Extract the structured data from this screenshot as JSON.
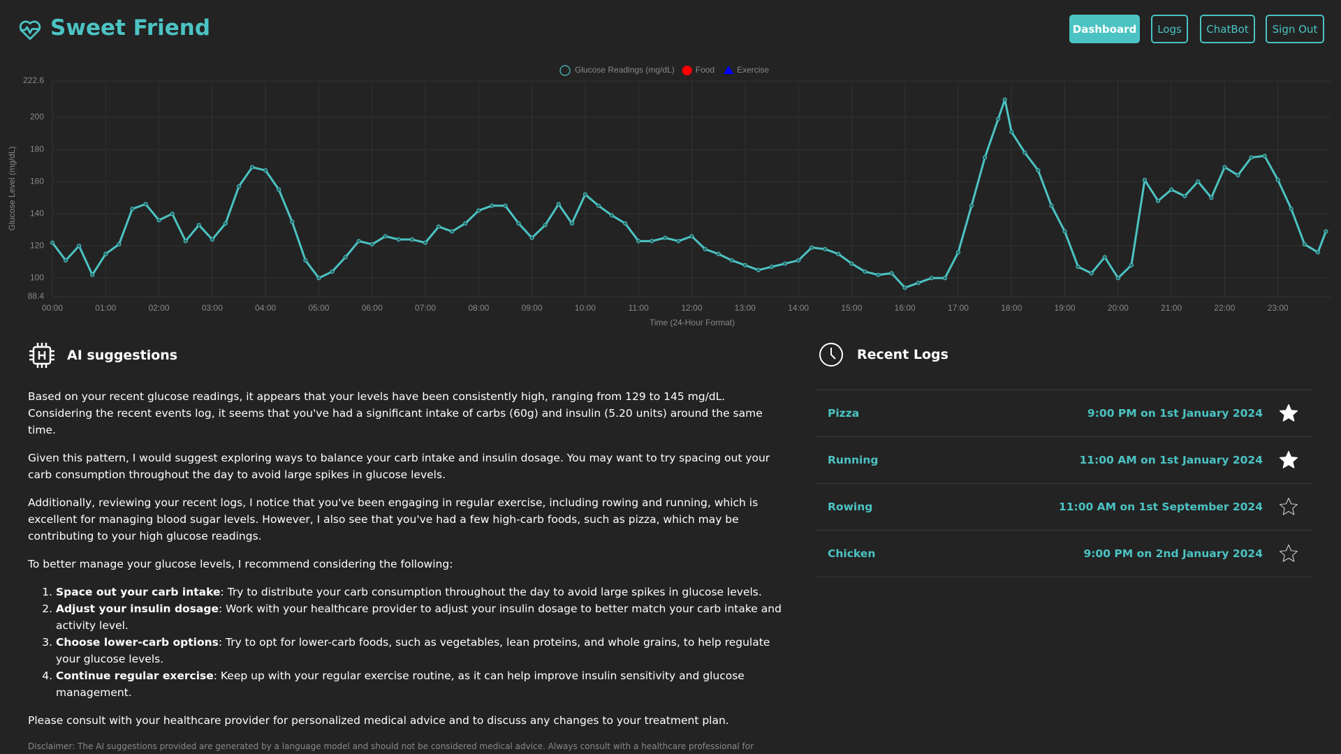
{
  "header": {
    "title": "Sweet Friend"
  },
  "nav": {
    "items": [
      "Dashboard",
      "Logs",
      "ChatBot",
      "Sign Out"
    ],
    "active": 0
  },
  "chart_data": {
    "type": "line",
    "x_label": "Time (24-Hour Format)",
    "y_label": "Glucose Level (mg/dL)",
    "x": [
      0,
      0.25,
      0.5,
      0.75,
      1,
      1.25,
      1.5,
      1.75,
      2,
      2.25,
      2.5,
      2.75,
      3,
      3.25,
      3.5,
      3.75,
      4,
      4.25,
      4.5,
      4.75,
      5,
      5.25,
      5.5,
      5.75,
      6,
      6.25,
      6.5,
      6.75,
      7,
      7.25,
      7.5,
      7.75,
      8,
      8.25,
      8.5,
      8.75,
      9,
      9.25,
      9.5,
      9.75,
      10,
      10.25,
      10.5,
      10.75,
      11,
      11.25,
      11.5,
      11.75,
      12,
      12.25,
      12.5,
      12.75,
      13,
      13.25,
      13.5,
      13.75,
      14,
      14.25,
      14.5,
      14.75,
      15,
      15.25,
      15.5,
      15.75,
      16,
      16.25,
      16.5,
      16.75,
      17,
      17.25,
      17.5,
      17.75,
      17.875,
      18,
      18.25,
      18.5,
      18.75,
      19,
      19.25,
      19.5,
      19.75,
      20,
      20.25,
      20.5,
      20.75,
      21,
      21.25,
      21.5,
      21.75,
      22,
      22.25,
      22.5,
      22.75,
      23,
      23.25,
      23.5,
      23.75,
      23.9
    ],
    "series": [
      {
        "name": "Glucose Readings (mg/dL)",
        "color": "#4cc3c3",
        "values": [
          122,
          111,
          120,
          102,
          115,
          121,
          143,
          146,
          136,
          140,
          123,
          133,
          124,
          134,
          157,
          169,
          167,
          155,
          135,
          111,
          100,
          104,
          113,
          123,
          121,
          126,
          124,
          124,
          122,
          132,
          129,
          134,
          142,
          145,
          145,
          134,
          125,
          133,
          146,
          134,
          152,
          145,
          139,
          134,
          123,
          123,
          125,
          123,
          126,
          118,
          115,
          111,
          108,
          105,
          107,
          109,
          111,
          119,
          118,
          115,
          109,
          104,
          102,
          103,
          94,
          97,
          100,
          100,
          116,
          145,
          175,
          199,
          211,
          191,
          178,
          167,
          145,
          129,
          107,
          103,
          113,
          100,
          108,
          161,
          148,
          155,
          151,
          160,
          150,
          169,
          164,
          175,
          176,
          161,
          143,
          121,
          116,
          129
        ]
      }
    ],
    "other_legend": [
      {
        "name": "Food",
        "color": "#ff0000",
        "marker": "circle"
      },
      {
        "name": "Exercise",
        "color": "#0000ff",
        "marker": "triangle"
      }
    ],
    "xlim": [
      0,
      24
    ],
    "ylim": [
      88.4,
      222.6
    ],
    "yticks": [
      88.4,
      100,
      120,
      140,
      160,
      180,
      200,
      222.6
    ],
    "xticks": [
      {
        "value": 0,
        "label": "00:00"
      },
      {
        "value": 1,
        "label": "01:00"
      },
      {
        "value": 2,
        "label": "02:00"
      },
      {
        "value": 3,
        "label": "03:00"
      },
      {
        "value": 4,
        "label": "04:00"
      },
      {
        "value": 5,
        "label": "05:00"
      },
      {
        "value": 6,
        "label": "06:00"
      },
      {
        "value": 7,
        "label": "07:00"
      },
      {
        "value": 8,
        "label": "08:00"
      },
      {
        "value": 9,
        "label": "09:00"
      },
      {
        "value": 10,
        "label": "10:00"
      },
      {
        "value": 11,
        "label": "11:00"
      },
      {
        "value": 12,
        "label": "12:00"
      },
      {
        "value": 13,
        "label": "13:00"
      },
      {
        "value": 14,
        "label": "14:00"
      },
      {
        "value": 15,
        "label": "15:00"
      },
      {
        "value": 16,
        "label": "16:00"
      },
      {
        "value": 17,
        "label": "17:00"
      },
      {
        "value": 18,
        "label": "18:00"
      },
      {
        "value": 19,
        "label": "19:00"
      },
      {
        "value": 20,
        "label": "20:00"
      },
      {
        "value": 21,
        "label": "21:00"
      },
      {
        "value": 22,
        "label": "22:00"
      },
      {
        "value": 23,
        "label": "23:00"
      }
    ],
    "grid": true
  },
  "ai": {
    "heading": "AI suggestions",
    "paragraphs": [
      "Based on your recent glucose readings, it appears that your levels have been consistently high, ranging from 129 to 145 mg/dL. Considering the recent events log, it seems that you've had a significant intake of carbs (60g) and insulin (5.20 units) around the same time.",
      "Given this pattern, I would suggest exploring ways to balance your carb intake and insulin dosage. You may want to try spacing out your carb consumption throughout the day to avoid large spikes in glucose levels.",
      "Additionally, reviewing your recent logs, I notice that you've been engaging in regular exercise, including rowing and running, which is excellent for managing blood sugar levels. However, I also see that you've had a few high-carb foods, such as pizza, which may be contributing to your high glucose readings.",
      "To better manage your glucose levels, I recommend considering the following:"
    ],
    "list": [
      {
        "bold": "Space out your carb intake",
        "text": ": Try to distribute your carb consumption throughout the day to avoid large spikes in glucose levels."
      },
      {
        "bold": "Adjust your insulin dosage",
        "text": ": Work with your healthcare provider to adjust your insulin dosage to better match your carb intake and activity level."
      },
      {
        "bold": "Choose lower-carb options",
        "text": ": Try to opt for lower-carb foods, such as vegetables, lean proteins, and whole grains, to help regulate your glucose levels."
      },
      {
        "bold": "Continue regular exercise",
        "text": ": Keep up with your regular exercise routine, as it can help improve insulin sensitivity and glucose management."
      }
    ],
    "closing": "Please consult with your healthcare provider for personalized medical advice and to discuss any changes to your treatment plan.",
    "disclaimer": "Disclaimer: The AI suggestions provided are generated by a language model and should not be considered medical advice. Always consult with a healthcare professional for medical advice and treatment."
  },
  "logs": {
    "heading": "Recent Logs",
    "rows": [
      {
        "name": "Pizza",
        "time": "9:00 PM on 1st January 2024",
        "starred": true
      },
      {
        "name": "Running",
        "time": "11:00 AM on 1st January 2024",
        "starred": true
      },
      {
        "name": "Rowing",
        "time": "11:00 AM on 1st September 2024",
        "starred": false
      },
      {
        "name": "Chicken",
        "time": "9:00 PM on 2nd January 2024",
        "starred": false
      }
    ]
  }
}
